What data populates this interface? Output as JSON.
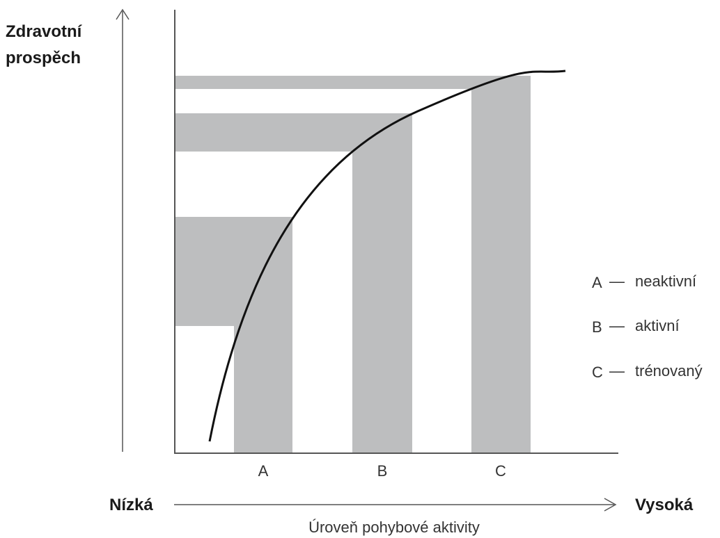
{
  "y_axis": {
    "label_line1": "Zdravotní",
    "label_line2": "prospěch"
  },
  "x_axis": {
    "low_label": "Nízká",
    "high_label": "Vysoká",
    "title": "Úroveň pohybové aktivity"
  },
  "columns": [
    {
      "key": "A",
      "label": "A"
    },
    {
      "key": "B",
      "label": "B"
    },
    {
      "key": "C",
      "label": "C"
    }
  ],
  "legend": [
    {
      "key": "A",
      "dash": "—",
      "text": "neaktivní"
    },
    {
      "key": "B",
      "dash": "—",
      "text": "aktivní"
    },
    {
      "key": "C",
      "dash": "—",
      "text": "trénovaný"
    }
  ],
  "colors": {
    "band_fill": "#bdbebf",
    "axis_stroke": "#555555",
    "curve_stroke": "#111111",
    "background": "#ffffff"
  }
}
